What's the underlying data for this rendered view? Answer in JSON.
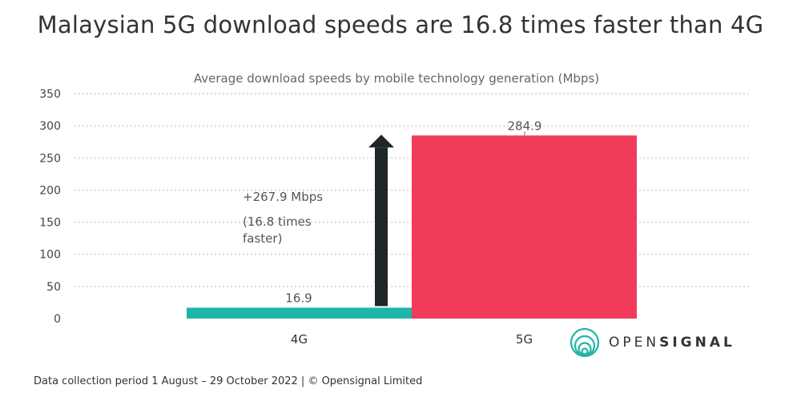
{
  "title": "Malaysian 5G download speeds are 16.8 times faster than 4G",
  "footer": "Data collection period 1 August – 29 October 2022  |  © Opensignal Limited",
  "logo": {
    "light": "OPEN",
    "bold": "SIGNAL"
  },
  "annotation": {
    "line1": "+267.9 Mbps",
    "line2": "(16.8 times",
    "line3": "faster)"
  },
  "colors": {
    "bar_4g": "#1fb5a8",
    "bar_5g": "#f03c5a",
    "arrow": "#1f2628",
    "grid": "#bfbfbf",
    "logo": "#1fb5a8"
  },
  "chart_data": {
    "type": "bar",
    "subtitle": "Average download speeds by mobile technology generation (Mbps)",
    "categories": [
      "4G",
      "5G"
    ],
    "values": [
      16.9,
      284.9
    ],
    "value_labels": [
      "16.9",
      "284.9"
    ],
    "ylim": [
      0,
      350
    ],
    "yticks": [
      0,
      50,
      100,
      150,
      200,
      250,
      300,
      350
    ],
    "grid": true
  }
}
